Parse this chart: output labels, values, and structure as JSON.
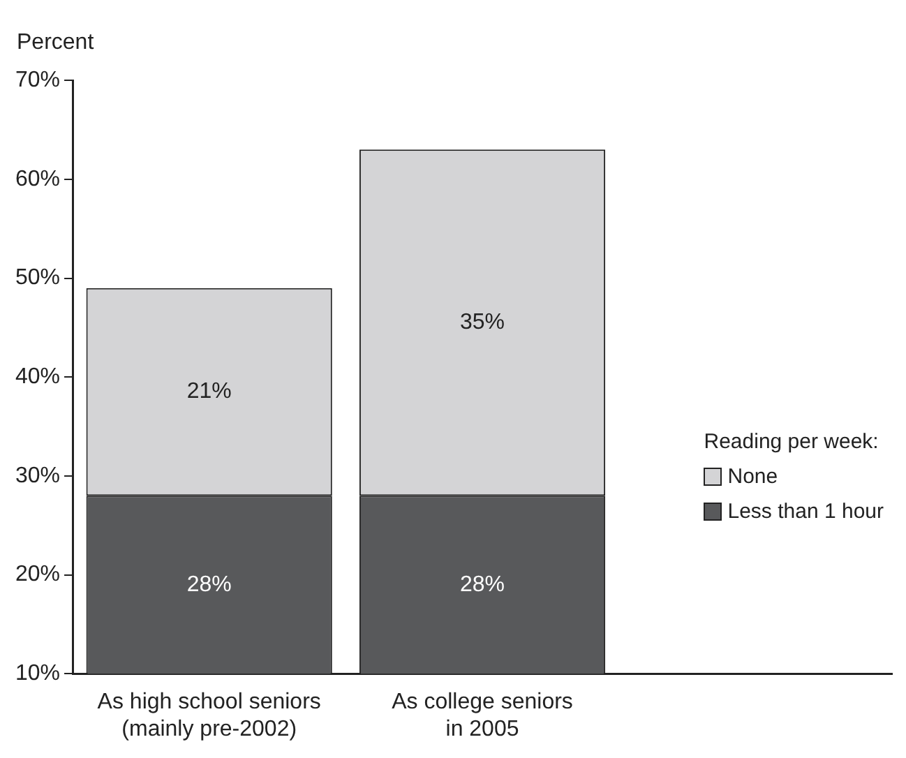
{
  "chart_data": {
    "type": "bar",
    "stacked": true,
    "ylabel": "Percent",
    "legend_title": "Reading per week:",
    "legend": "right",
    "grid": false,
    "categories": [
      "As high school seniors\n(mainly pre-2002)",
      "As college seniors\nin 2005"
    ],
    "series": [
      {
        "name": "Less than 1 hour",
        "color": "#58595b",
        "values": [
          28,
          28
        ],
        "value_labels": [
          "28%",
          "28%"
        ]
      },
      {
        "name": "None",
        "color": "#d4d4d6",
        "values": [
          21,
          35
        ],
        "value_labels": [
          "21%",
          "35%"
        ]
      }
    ],
    "ylim": [
      10,
      70
    ],
    "yticks": [
      {
        "value": 10,
        "label": "10%"
      },
      {
        "value": 20,
        "label": "20%"
      },
      {
        "value": 30,
        "label": "30%"
      },
      {
        "value": 40,
        "label": "40%"
      },
      {
        "value": 50,
        "label": "50%"
      },
      {
        "value": 60,
        "label": "60%"
      },
      {
        "value": 70,
        "label": "70%"
      }
    ]
  }
}
